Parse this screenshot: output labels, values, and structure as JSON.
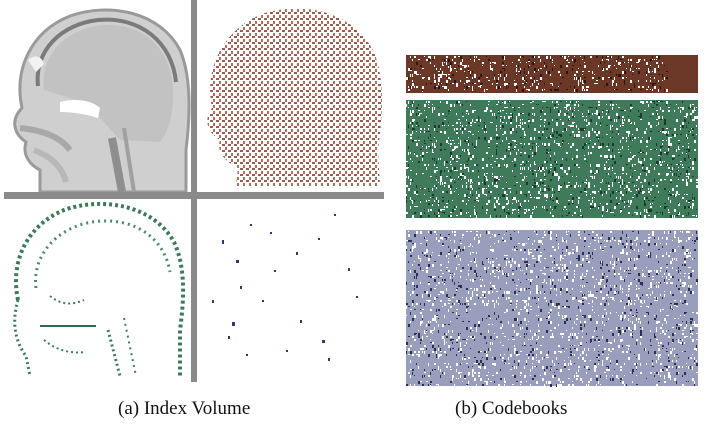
{
  "figure": {
    "subfigures": [
      {
        "label": "(a)",
        "caption": "Index Volume",
        "panels": [
          {
            "position": "top-left",
            "content": "grayscale sagittal head slice",
            "tone": "#c9c9c9"
          },
          {
            "position": "top-right",
            "content": "head silhouette, sparse dots",
            "color": "#8b4a3a"
          },
          {
            "position": "bottom-left",
            "content": "head contour, sparse dots",
            "color": "#3d7a5a"
          },
          {
            "position": "bottom-right",
            "content": "scattered dots",
            "color": "#2c3a78"
          }
        ],
        "divider_color": "#8a8a8a"
      },
      {
        "label": "(b)",
        "caption": "Codebooks",
        "strips": [
          {
            "name": "brown codebook",
            "color": "#6b3828"
          },
          {
            "name": "green codebook",
            "color": "#3f7a5a"
          },
          {
            "name": "lavender codebook",
            "color": "#9a9ebd"
          }
        ]
      }
    ],
    "caption_a": "(a) Index Volume",
    "caption_b": "(b) Codebooks"
  }
}
